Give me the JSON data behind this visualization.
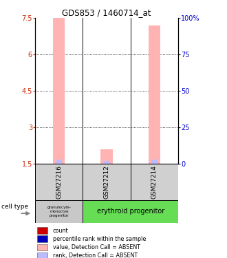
{
  "title": "GDS853 / 1460714_at",
  "samples": [
    "GSM27216",
    "GSM27212",
    "GSM27214"
  ],
  "ylim_left": [
    1.5,
    7.5
  ],
  "ytick_labels_left": [
    "1.5",
    "3",
    "4.5",
    "6",
    "7.5"
  ],
  "yticks_left": [
    1.5,
    3.0,
    4.5,
    6.0,
    7.5
  ],
  "ytick_labels_right": [
    "0",
    "25",
    "50",
    "75",
    "100%"
  ],
  "gridlines": [
    3.0,
    4.5,
    6.0
  ],
  "bar_values": [
    7.5,
    2.1,
    7.2
  ],
  "rank_values": [
    1.68,
    1.62,
    1.68
  ],
  "bar_color_absent": "#FFB3B3",
  "rank_color_absent": "#BBBBFF",
  "bar_width": 0.25,
  "rank_bar_width": 0.12,
  "cell_type_1": "granulocyte-\nmonoctye\nprogenitor",
  "cell_type_2": "erythroid progenitor",
  "cell_color_1": "#C8C8C8",
  "cell_color_2": "#66DD55",
  "sample_box_color": "#D0D0D0",
  "legend_items": [
    {
      "label": "count",
      "color": "#CC0000"
    },
    {
      "label": "percentile rank within the sample",
      "color": "#0000BB"
    },
    {
      "label": "value, Detection Call = ABSENT",
      "color": "#FFB3B3"
    },
    {
      "label": "rank, Detection Call = ABSENT",
      "color": "#BBBBFF"
    }
  ]
}
